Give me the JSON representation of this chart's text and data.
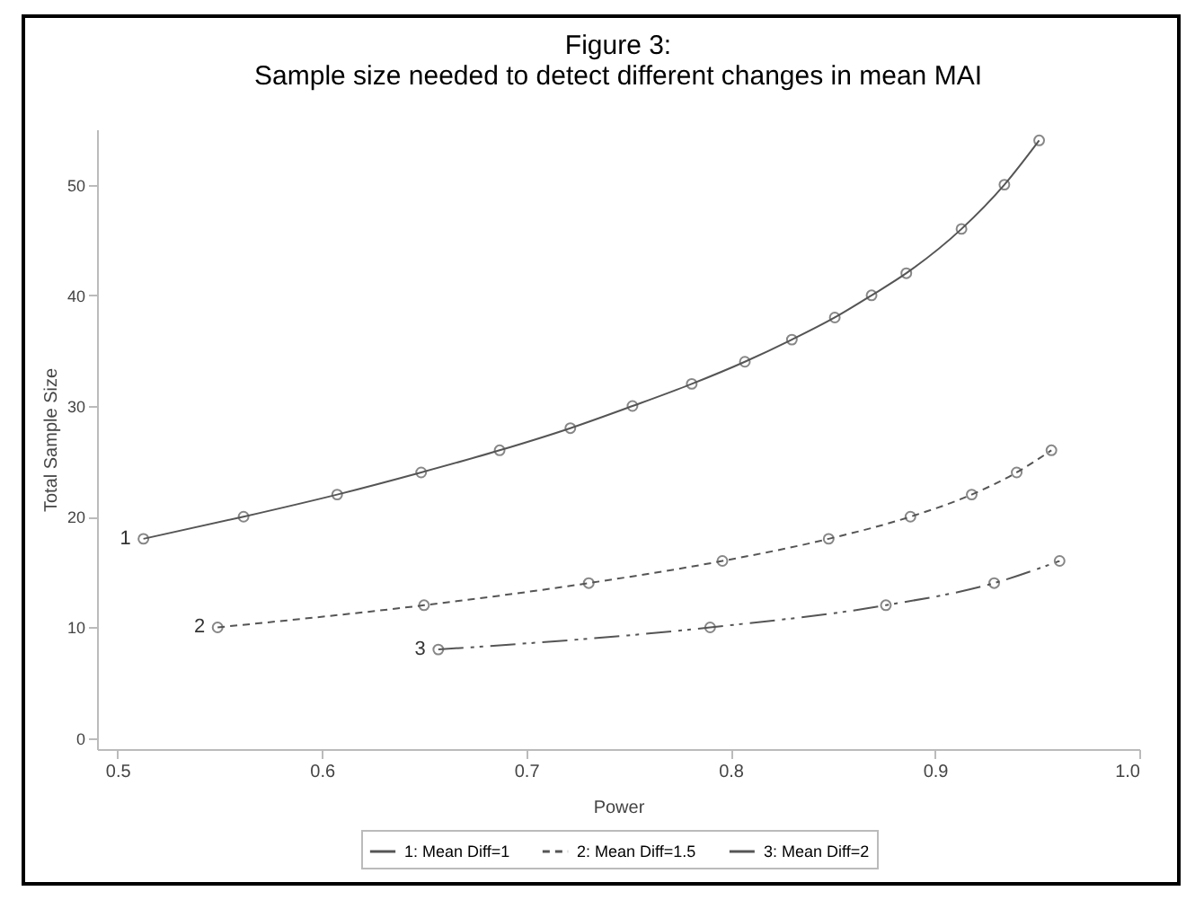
{
  "chart_data": {
    "type": "line",
    "title": "Figure 3:",
    "subtitle": "Sample size needed to detect different changes in mean MAI",
    "xlabel": "Power",
    "ylabel": "Total Sample Size",
    "xlim": [
      0.49,
      1.0
    ],
    "ylim": [
      -1,
      55
    ],
    "xticks": [
      0.5,
      0.6,
      0.7,
      0.8,
      0.9,
      {
        "value": 1.0,
        "label": "1.0"
      }
    ],
    "yticks": [
      0,
      10,
      20,
      30,
      40,
      50
    ],
    "marker": "circle",
    "legend": "bottom",
    "series": [
      {
        "name": "1: Mean Diff=1",
        "color": "#555555",
        "line_style": "solid",
        "x": [
          0.5127,
          0.5617,
          0.6075,
          0.6486,
          0.687,
          0.7216,
          0.752,
          0.781,
          0.807,
          0.83,
          0.851,
          0.869,
          0.886,
          0.913,
          0.934,
          0.951
        ],
        "values": [
          18,
          20,
          22,
          24,
          26,
          28,
          30,
          32,
          34,
          36,
          38,
          40,
          42,
          46,
          50,
          54
        ]
      },
      {
        "name": "2: Mean Diff=1.5",
        "color": "#555555",
        "line_style": "dashed",
        "x": [
          0.549,
          0.65,
          0.7306,
          0.796,
          0.848,
          0.888,
          0.918,
          0.94,
          0.957
        ],
        "values": [
          10,
          12,
          14,
          16,
          18,
          20,
          22,
          24,
          26
        ]
      },
      {
        "name": "3: Mean Diff=2",
        "color": "#555555",
        "line_style": "dotted",
        "x": [
          0.657,
          0.79,
          0.876,
          0.929,
          0.961
        ],
        "values": [
          8,
          10,
          12,
          14,
          16
        ]
      }
    ],
    "annotations": [
      {
        "text": "1",
        "x": 0.5127,
        "y": 18
      },
      {
        "text": "2",
        "x": 0.549,
        "y": 10
      },
      {
        "text": "3",
        "x": 0.657,
        "y": 8
      }
    ]
  }
}
